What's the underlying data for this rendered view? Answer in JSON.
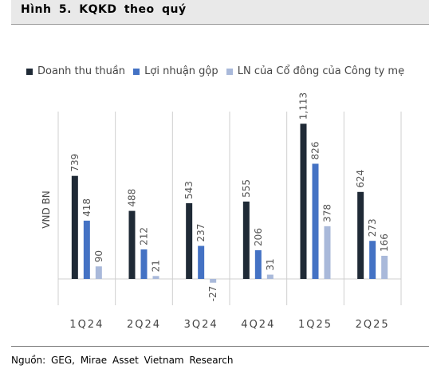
{
  "header": {
    "title": "Hình 5. KQKD theo quý"
  },
  "footer": {
    "source": "Nguồn: GEG, Mirae Asset Vietnam Research"
  },
  "chart_data": {
    "type": "bar",
    "title": "",
    "xlabel": "",
    "ylabel": "VND BN",
    "categories": [
      "1Q24",
      "2Q24",
      "3Q24",
      "4Q24",
      "1Q25",
      "2Q25"
    ],
    "series": [
      {
        "name": "Doanh thu thuần",
        "color": "#1f2a36",
        "values": [
          739,
          488,
          543,
          555,
          1113,
          624
        ],
        "labels": [
          "739",
          "488",
          "543",
          "555",
          "1,113",
          "624"
        ]
      },
      {
        "name": "Lợi nhuận gộp",
        "color": "#4472c4",
        "values": [
          418,
          212,
          237,
          206,
          826,
          273
        ],
        "labels": [
          "418",
          "212",
          "237",
          "206",
          "826",
          "273"
        ]
      },
      {
        "name": "LN của Cổ đông của Công ty mẹ",
        "color": "#a9b9da",
        "values": [
          90,
          21,
          -27,
          31,
          378,
          166
        ],
        "labels": [
          "90",
          "21",
          "-27",
          "31",
          "378",
          "166"
        ]
      }
    ],
    "legend_position": "top",
    "grid": false
  }
}
